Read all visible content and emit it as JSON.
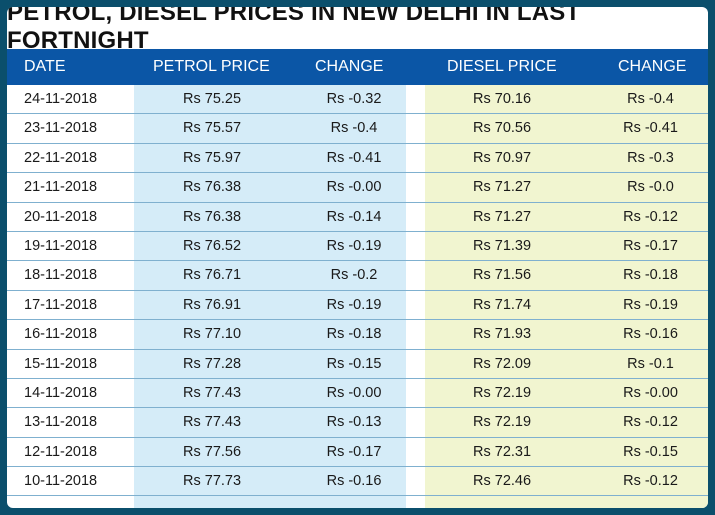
{
  "title": "PETROL, DIESEL PRICES IN NEW DELHI IN LAST FORTNIGHT",
  "headers": {
    "date": "DATE",
    "petrol": "PETROL PRICE",
    "petrol_change": "CHANGE",
    "diesel": "DIESEL PRICE",
    "diesel_change": "CHANGE"
  },
  "colors": {
    "header_bg": "#0b56a6",
    "petrol_bg": "#d5ecf8",
    "diesel_bg": "#f1f5d0",
    "frame": "#0b4f6c"
  },
  "rows": [
    {
      "date": "24-11-2018",
      "petrol": "Rs 75.25",
      "petrol_change": "Rs -0.32",
      "diesel": "Rs 70.16",
      "diesel_change": "Rs -0.4"
    },
    {
      "date": "23-11-2018",
      "petrol": "Rs 75.57",
      "petrol_change": "Rs -0.4",
      "diesel": "Rs 70.56",
      "diesel_change": "Rs -0.41"
    },
    {
      "date": "22-11-2018",
      "petrol": "Rs 75.97",
      "petrol_change": "Rs -0.41",
      "diesel": "Rs 70.97",
      "diesel_change": "Rs -0.3"
    },
    {
      "date": "21-11-2018",
      "petrol": "Rs 76.38",
      "petrol_change": "Rs -0.00",
      "diesel": "Rs 71.27",
      "diesel_change": "Rs -0.0"
    },
    {
      "date": "20-11-2018",
      "petrol": "Rs 76.38",
      "petrol_change": "Rs -0.14",
      "diesel": "Rs 71.27",
      "diesel_change": "Rs -0.12"
    },
    {
      "date": "19-11-2018",
      "petrol": "Rs 76.52",
      "petrol_change": "Rs -0.19",
      "diesel": "Rs 71.39",
      "diesel_change": "Rs -0.17"
    },
    {
      "date": "18-11-2018",
      "petrol": "Rs 76.71",
      "petrol_change": "Rs -0.2",
      "diesel": "Rs 71.56",
      "diesel_change": "Rs -0.18"
    },
    {
      "date": "17-11-2018",
      "petrol": "Rs 76.91",
      "petrol_change": "Rs -0.19",
      "diesel": "Rs 71.74",
      "diesel_change": "Rs -0.19"
    },
    {
      "date": "16-11-2018",
      "petrol": "Rs 77.10",
      "petrol_change": "Rs -0.18",
      "diesel": "Rs 71.93",
      "diesel_change": "Rs -0.16"
    },
    {
      "date": "15-11-2018",
      "petrol": "Rs 77.28",
      "petrol_change": "Rs -0.15",
      "diesel": "Rs 72.09",
      "diesel_change": "Rs -0.1"
    },
    {
      "date": "14-11-2018",
      "petrol": "Rs 77.43",
      "petrol_change": "Rs -0.00",
      "diesel": "Rs 72.19",
      "diesel_change": "Rs -0.00"
    },
    {
      "date": "13-11-2018",
      "petrol": "Rs 77.43",
      "petrol_change": "Rs -0.13",
      "diesel": "Rs 72.19",
      "diesel_change": "Rs -0.12"
    },
    {
      "date": "12-11-2018",
      "petrol": "Rs 77.56",
      "petrol_change": "Rs -0.17",
      "diesel": "Rs 72.31",
      "diesel_change": "Rs -0.15"
    },
    {
      "date": "10-11-2018",
      "petrol": "Rs 77.73",
      "petrol_change": "Rs -0.16",
      "diesel": "Rs 72.46",
      "diesel_change": "Rs -0.12"
    }
  ]
}
